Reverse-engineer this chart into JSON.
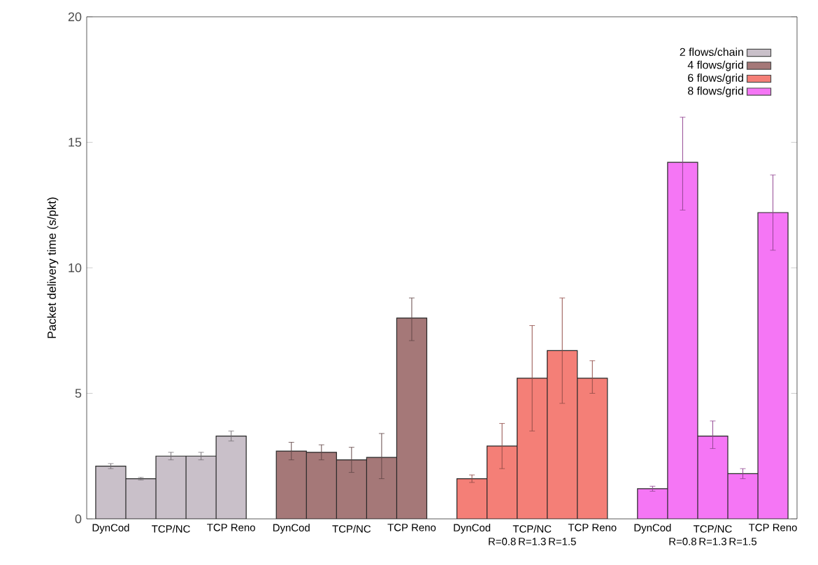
{
  "chart_data": {
    "type": "bar",
    "ylabel": "Packet delivery time (s/pkt)",
    "categories": [
      "DynCod",
      null,
      "TCP/NC",
      null,
      "TCP Reno",
      null,
      "DynCod",
      null,
      "TCP/NC",
      null,
      "TCP Reno",
      null,
      "DynCod",
      "R=0.8",
      "TCP/NC R=1.3",
      "R=1.5",
      "TCP Reno",
      null,
      "DynCod",
      "R=0.8",
      "TCP/NC R=1.3",
      "R=1.5",
      "TCP Reno"
    ],
    "series": [
      {
        "name": "2 flows/chain",
        "color": "#c9c0c9",
        "values": [
          2.1,
          1.6,
          2.5,
          2.5,
          3.3,
          null,
          null,
          null,
          null,
          null,
          null,
          null,
          null,
          null,
          null,
          null,
          null,
          null,
          null,
          null,
          null,
          null,
          null
        ],
        "errors": [
          0.1,
          0.05,
          0.15,
          0.15,
          0.2,
          null,
          null,
          null,
          null,
          null,
          null,
          null,
          null,
          null,
          null,
          null,
          null,
          null,
          null,
          null,
          null,
          null,
          null
        ]
      },
      {
        "name": "4 flows/grid",
        "color": "#a57878",
        "values": [
          null,
          null,
          null,
          null,
          null,
          null,
          2.7,
          2.65,
          2.35,
          2.45,
          8.0,
          null,
          null,
          null,
          null,
          null,
          null,
          null,
          null,
          null,
          null,
          null,
          null
        ],
        "errors": [
          null,
          null,
          null,
          null,
          null,
          null,
          0.35,
          0.3,
          0.5,
          [
            1.6,
            3.4
          ],
          [
            7.1,
            8.8
          ],
          null,
          null,
          null,
          null,
          null,
          null,
          null,
          null,
          null,
          null,
          null,
          null
        ]
      },
      {
        "name": "6 flows/grid",
        "color": "#f47f77",
        "values": [
          null,
          null,
          null,
          null,
          null,
          null,
          null,
          null,
          null,
          null,
          null,
          null,
          1.6,
          2.9,
          5.6,
          6.7,
          5.6,
          null,
          null,
          null,
          null,
          null,
          null
        ],
        "errors": [
          null,
          null,
          null,
          null,
          null,
          null,
          null,
          null,
          null,
          null,
          null,
          null,
          0.15,
          [
            2.0,
            3.8
          ],
          [
            3.5,
            7.7
          ],
          [
            4.6,
            8.8
          ],
          [
            5.0,
            6.3
          ],
          null,
          null,
          null,
          null,
          null,
          null
        ]
      },
      {
        "name": "8 flows/grid",
        "color": "#f576f5",
        "values": [
          null,
          null,
          null,
          null,
          null,
          null,
          null,
          null,
          null,
          null,
          null,
          null,
          null,
          null,
          null,
          null,
          null,
          null,
          1.2,
          14.2,
          3.3,
          1.8,
          12.2
        ],
        "errors": [
          null,
          null,
          null,
          null,
          null,
          null,
          null,
          null,
          null,
          null,
          null,
          null,
          null,
          null,
          null,
          null,
          null,
          null,
          0.1,
          [
            12.3,
            16.0
          ],
          [
            2.8,
            3.9
          ],
          [
            1.6,
            2.0
          ],
          [
            10.7,
            13.7
          ]
        ]
      }
    ],
    "ylim": [
      0,
      20
    ],
    "yticks": [
      0,
      5,
      10,
      15,
      20
    ],
    "legend": "top right"
  }
}
